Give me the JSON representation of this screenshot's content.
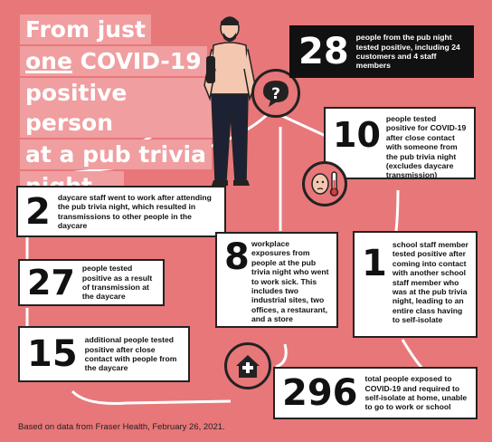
{
  "title": {
    "line1": "From just",
    "line2_a": "one",
    "line2_b": " COVID-19",
    "line3": "positive person",
    "line4": "at a pub trivia",
    "line5": "night..."
  },
  "stats": [
    {
      "id": "pub",
      "number": "28",
      "text": "people from the pub night tested positive, including 24 customers and 4 staff members"
    },
    {
      "id": "close",
      "number": "10",
      "text": "people tested positive for COVID-19 after close contact with someone from the pub trivia night (excludes daycare transmission)"
    },
    {
      "id": "daycare-staff",
      "number": "2",
      "text": "daycare staff went to work after attending the pub trivia night, which resulted in transmissions to other people in the daycare"
    },
    {
      "id": "daycare-transmission",
      "number": "27",
      "text": "people tested positive as a result of transmission at the daycare"
    },
    {
      "id": "workplace",
      "number": "8",
      "text": "workplace exposures from people at the pub trivia night who went to work sick. This includes two industrial sites, two offices, a restaurant, and a store"
    },
    {
      "id": "school",
      "number": "1",
      "text": "school staff member tested positive after coming into contact with another school staff member who was at the pub trivia night, leading to an entire class having to self-isolate"
    },
    {
      "id": "daycare-contacts",
      "number": "15",
      "text": "additional people tested positive after close contact with people from the daycare"
    },
    {
      "id": "exposed",
      "number": "296",
      "text": "total people exposed to COVID-19 and required to self-isolate at home, unable to go to work or school"
    }
  ],
  "icons": [
    "question-speech-bubble-icon",
    "sick-face-thermometer-icon",
    "house-medical-cross-icon",
    "person-illustration"
  ],
  "colors": {
    "background": "#e8777a",
    "title_highlight": "#f09ea0",
    "card": "#ffffff",
    "dark_card": "#111111",
    "accent": "#222222"
  },
  "footer": "Based on data from Fraser Health, February 26, 2021."
}
